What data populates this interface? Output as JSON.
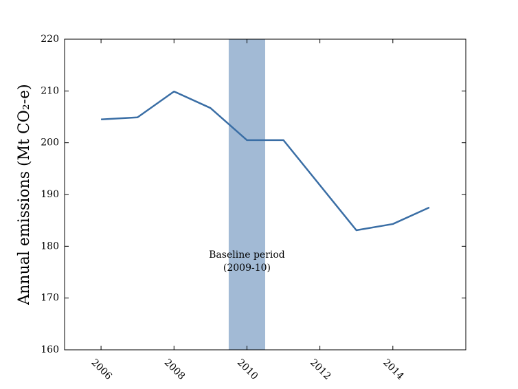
{
  "chart_data": {
    "type": "line",
    "y_label": "Annual emissions (Mt CO₂-e)",
    "x": [
      2006,
      2007,
      2008,
      2009,
      2010,
      2011,
      2013,
      2014,
      2015
    ],
    "series": [
      {
        "color": "#3a6ea5",
        "values": [
          204.5,
          204.9,
          209.9,
          206.7,
          200.5,
          200.5,
          183.1,
          184.3,
          187.5
        ]
      }
    ],
    "xlim": [
      2005,
      2016
    ],
    "xticks": [
      2006,
      2008,
      2010,
      2012,
      2014
    ],
    "ylim": [
      160,
      220
    ],
    "yticks": [
      160,
      170,
      180,
      190,
      200,
      210,
      220
    ],
    "shaded_span": {
      "x": [
        2009.5,
        2010.5
      ],
      "color": "#a2bad5"
    },
    "annotation": [
      "Baseline period",
      "(2009-10)"
    ]
  }
}
